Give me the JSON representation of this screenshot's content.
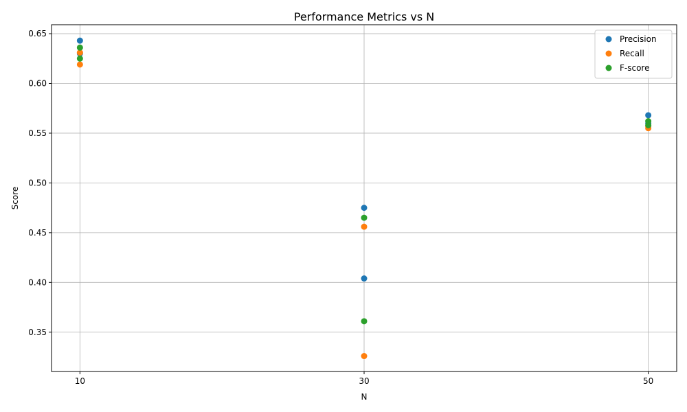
{
  "chart_data": {
    "type": "scatter",
    "title": "Performance Metrics vs N",
    "xlabel": "N",
    "ylabel": "Score",
    "xlim": [
      8,
      52
    ],
    "ylim": [
      0.3105,
      0.659
    ],
    "xticks": [
      10,
      30,
      50
    ],
    "yticks": [
      0.35,
      0.4,
      0.45,
      0.5,
      0.55,
      0.6,
      0.65
    ],
    "ytick_labels": [
      "0.35",
      "0.40",
      "0.45",
      "0.50",
      "0.55",
      "0.60",
      "0.65"
    ],
    "grid": true,
    "legend_position": "top-right",
    "series": [
      {
        "name": "Precision",
        "color": "#1f77b4",
        "points": [
          [
            10,
            0.643
          ],
          [
            10,
            0.63
          ],
          [
            30,
            0.475
          ],
          [
            30,
            0.404
          ],
          [
            50,
            0.568
          ],
          [
            50,
            0.56
          ]
        ]
      },
      {
        "name": "Recall",
        "color": "#ff7f0e",
        "points": [
          [
            10,
            0.631
          ],
          [
            10,
            0.619
          ],
          [
            30,
            0.456
          ],
          [
            30,
            0.326
          ],
          [
            50,
            0.555
          ],
          [
            50,
            0.557
          ]
        ]
      },
      {
        "name": "F-score",
        "color": "#2ca02c",
        "points": [
          [
            10,
            0.636
          ],
          [
            10,
            0.625
          ],
          [
            30,
            0.465
          ],
          [
            30,
            0.361
          ],
          [
            50,
            0.562
          ],
          [
            50,
            0.558
          ]
        ]
      }
    ]
  }
}
